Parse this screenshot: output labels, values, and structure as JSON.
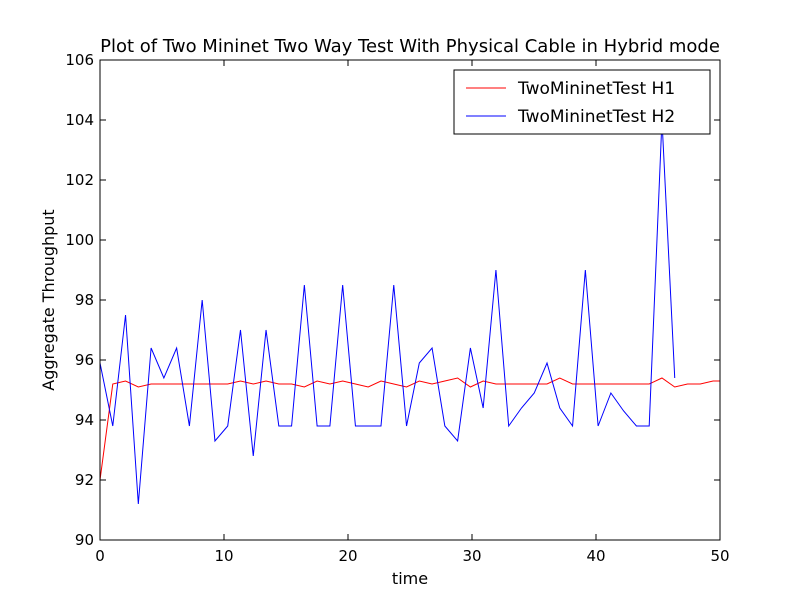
{
  "chart_data": {
    "type": "line",
    "title": "Plot of Two Mininet Two Way Test With Physical Cable in Hybrid mode",
    "xlabel": "time",
    "ylabel": "Aggregate Throughput",
    "xlim": [
      0,
      50
    ],
    "ylim": [
      90,
      106
    ],
    "xticks": [
      0,
      10,
      20,
      30,
      40,
      50
    ],
    "yticks": [
      90,
      92,
      94,
      96,
      98,
      100,
      102,
      104,
      106
    ],
    "grid": false,
    "legend_position": "top-right",
    "series": [
      {
        "name": "TwoMininetTest H1",
        "color": "#ff0000",
        "x": [
          0,
          1.03,
          2.06,
          3.09,
          4.12,
          5.15,
          6.18,
          7.21,
          8.24,
          9.27,
          10.3,
          11.33,
          12.36,
          13.39,
          14.42,
          15.45,
          16.48,
          17.51,
          18.54,
          19.57,
          20.6,
          21.63,
          22.66,
          23.69,
          24.72,
          25.75,
          26.78,
          27.81,
          28.84,
          29.87,
          30.9,
          31.93,
          32.96,
          33.99,
          35.02,
          36.05,
          37.08,
          38.11,
          39.14,
          40.17,
          41.2,
          42.23,
          43.26,
          44.29,
          45.32,
          46.35,
          47.38,
          48.41,
          49.44,
          50
        ],
        "y": [
          92.0,
          95.2,
          95.3,
          95.1,
          95.2,
          95.2,
          95.2,
          95.2,
          95.2,
          95.2,
          95.2,
          95.3,
          95.2,
          95.3,
          95.2,
          95.2,
          95.1,
          95.3,
          95.2,
          95.3,
          95.2,
          95.1,
          95.3,
          95.2,
          95.1,
          95.3,
          95.2,
          95.3,
          95.4,
          95.1,
          95.3,
          95.2,
          95.2,
          95.2,
          95.2,
          95.2,
          95.4,
          95.2,
          95.2,
          95.2,
          95.2,
          95.2,
          95.2,
          95.2,
          95.4,
          95.1,
          95.2,
          95.2,
          95.3,
          95.3
        ]
      },
      {
        "name": "TwoMininetTest H2",
        "color": "#0000ff",
        "x": [
          0,
          1.03,
          2.06,
          3.09,
          4.12,
          5.15,
          6.18,
          7.21,
          8.24,
          9.27,
          10.3,
          11.33,
          12.36,
          13.39,
          14.42,
          15.45,
          16.48,
          17.51,
          18.54,
          19.57,
          20.6,
          21.63,
          22.66,
          23.69,
          24.72,
          25.75,
          26.78,
          27.81,
          28.84,
          29.87,
          30.9,
          31.93,
          32.96,
          33.99,
          35.02,
          36.05,
          37.08,
          38.11,
          39.14,
          40.17,
          41.2,
          42.23,
          43.26,
          44.29,
          45.32,
          46.35
        ],
        "y": [
          95.9,
          93.8,
          97.5,
          91.2,
          96.4,
          95.4,
          96.4,
          93.8,
          98.0,
          93.3,
          93.8,
          97.0,
          92.8,
          97.0,
          93.8,
          93.8,
          98.5,
          93.8,
          93.8,
          98.5,
          93.8,
          93.8,
          93.8,
          98.5,
          93.8,
          95.9,
          96.4,
          93.8,
          93.3,
          96.4,
          94.4,
          99.0,
          93.8,
          94.4,
          94.9,
          95.9,
          94.4,
          93.8,
          99.0,
          93.8,
          94.9,
          94.3,
          93.8,
          93.8,
          104.0,
          95.4
        ]
      }
    ]
  }
}
